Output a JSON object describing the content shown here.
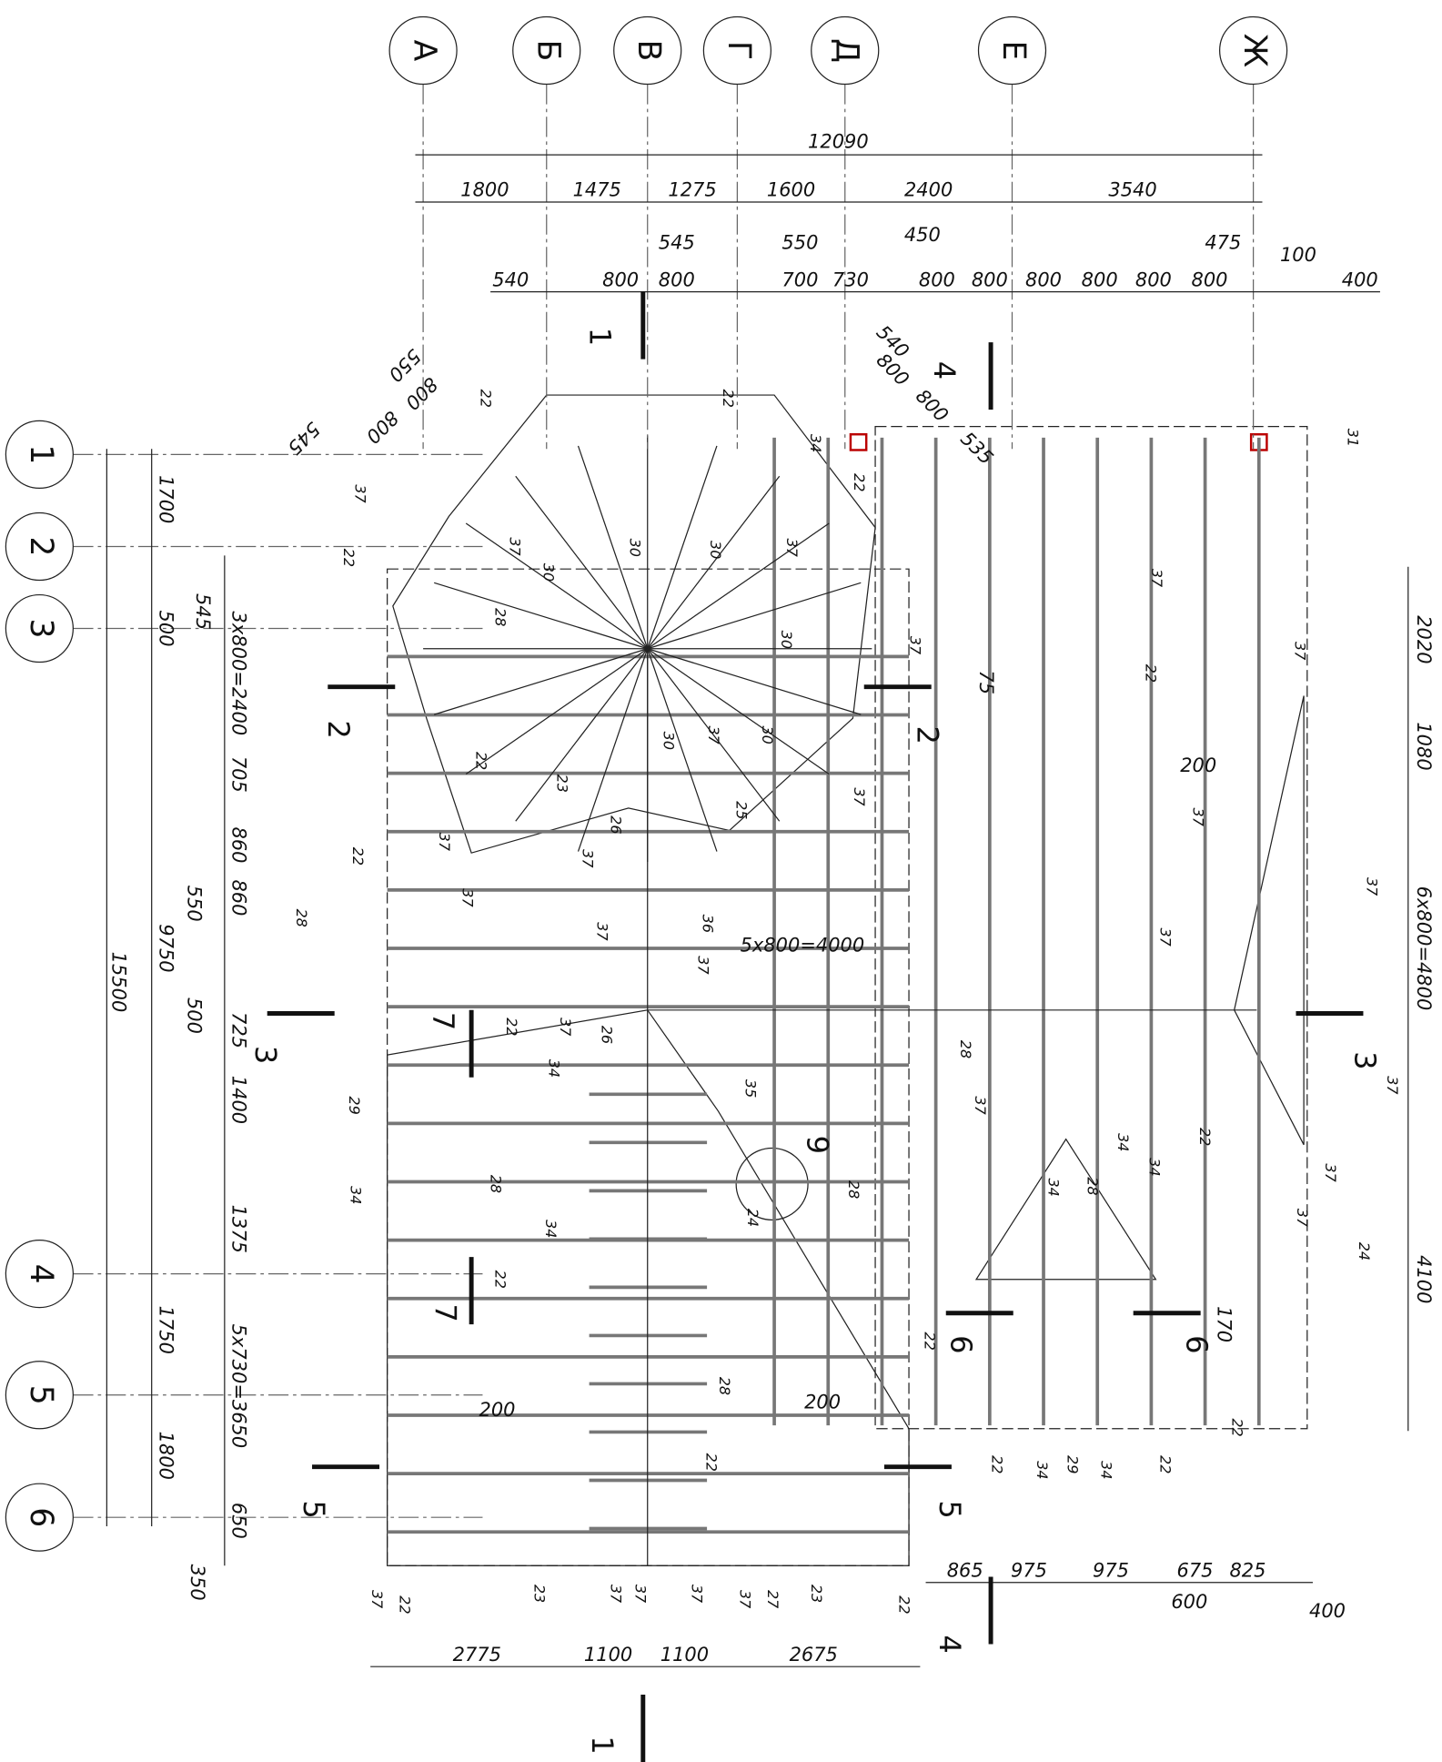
{
  "axes_letters": [
    "А",
    "Б",
    "В",
    "Г",
    "Д",
    "Е",
    "Ж"
  ],
  "axes_numbers": [
    "1",
    "2",
    "3",
    "4",
    "5",
    "6"
  ],
  "dims_top": {
    "total": "12090",
    "row2": [
      "1800",
      "1475",
      "1275",
      "1600",
      "2400",
      "3540"
    ],
    "row3": [
      "540",
      "800",
      "800",
      "700",
      "730",
      "800",
      "800",
      "800",
      "800",
      "800",
      "800",
      "400"
    ],
    "upper": [
      "545",
      "550",
      "450",
      "475",
      "100"
    ]
  },
  "dims_left": {
    "outer": "15500",
    "mid": [
      "1700",
      "500",
      "9750",
      "1750",
      "1800"
    ],
    "inner": [
      "3x800=2400",
      "705",
      "860",
      "860",
      "725",
      "1400",
      "1375",
      "5x730=3650",
      "650"
    ],
    "extra": [
      "545",
      "550",
      "500",
      "350"
    ]
  },
  "dims_bottom": [
    "2775",
    "1100",
    "1100",
    "2675",
    "865",
    "975",
    "975",
    "675",
    "825",
    "600",
    "400"
  ],
  "dims_right": [
    "2020",
    "1080",
    "6x800=4800",
    "4100"
  ],
  "dims_inner": [
    "200",
    "170",
    "75",
    "5x800=4000",
    "200",
    "200"
  ],
  "diag_dims": [
    "550",
    "800",
    "800",
    "545",
    "540",
    "800",
    "800",
    "535"
  ],
  "sections": [
    "1",
    "1",
    "2",
    "2",
    "3",
    "3",
    "4",
    "4",
    "5",
    "5",
    "6",
    "6",
    "7",
    "7",
    "9"
  ],
  "element_labels": [
    "22",
    "22",
    "37",
    "37",
    "30",
    "30",
    "30",
    "37",
    "34",
    "22",
    "37",
    "22",
    "37",
    "31",
    "22",
    "28",
    "30",
    "37",
    "22",
    "23",
    "37",
    "37",
    "26",
    "30",
    "37",
    "30",
    "37",
    "25",
    "22",
    "28",
    "37",
    "37",
    "36",
    "37",
    "37",
    "37",
    "37",
    "28",
    "22",
    "37",
    "26",
    "34",
    "35",
    "37",
    "29",
    "28",
    "34",
    "34",
    "24",
    "28",
    "34",
    "34",
    "34",
    "28",
    "22",
    "37",
    "37",
    "37",
    "24",
    "22",
    "22",
    "28",
    "22",
    "22",
    "34",
    "29",
    "34",
    "22",
    "22",
    "37",
    "22",
    "23",
    "37",
    "37",
    "37",
    "37",
    "27",
    "23",
    "22"
  ]
}
